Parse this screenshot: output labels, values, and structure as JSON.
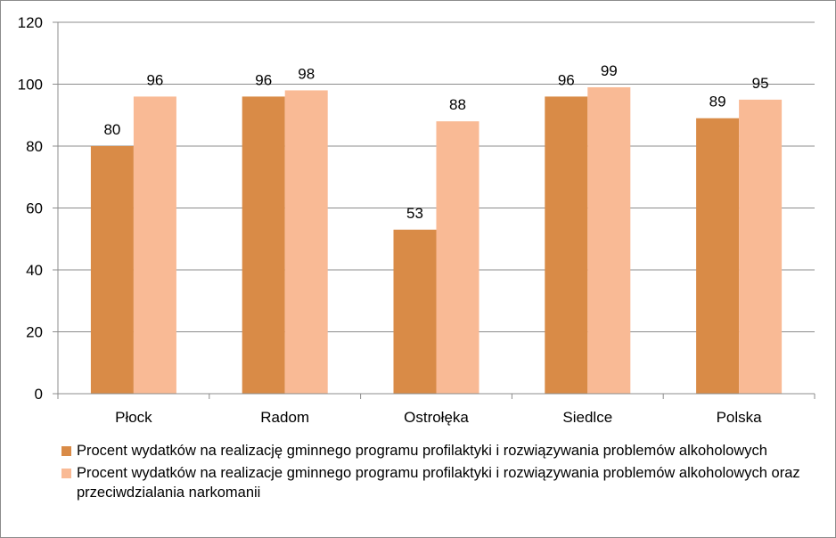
{
  "chart_data": {
    "type": "bar",
    "categories": [
      "Płock",
      "Radom",
      "Ostrołęka",
      "Siedlce",
      "Polska"
    ],
    "series": [
      {
        "name": "Procent wydatków na realizację gminnego programu profilaktyki i rozwiązywania problemów alkoholowych",
        "values": [
          80,
          96,
          53,
          96,
          89
        ],
        "color": "#D98B47"
      },
      {
        "name": "Procent wydatków na realizacje gminnego programu profilaktyki  i rozwiązywania problemów alkoholowych oraz przeciwdzialania narkomanii",
        "values": [
          96,
          98,
          88,
          99,
          95
        ],
        "color": "#F9BA95"
      }
    ],
    "yticks": [
      "0",
      "20",
      "40",
      "60",
      "80",
      "100",
      "120"
    ],
    "ylim": [
      0,
      120
    ],
    "grid": true,
    "data_labels": true,
    "legend_position": "bottom"
  },
  "colors": {
    "gridline": "#8c8c8c",
    "axis": "#8c8c8c"
  }
}
